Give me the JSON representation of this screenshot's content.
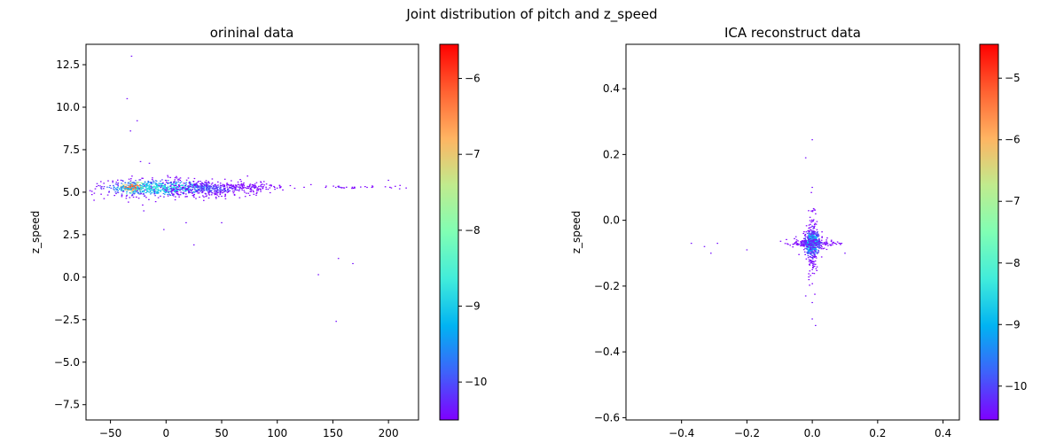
{
  "figure": {
    "suptitle": "Joint distribution of pitch and z_speed"
  },
  "chart_data": [
    {
      "type": "heatmap",
      "title": "orininal data",
      "xlabel": "",
      "ylabel": "z_speed",
      "xlim": [
        -72,
        227
      ],
      "ylim": [
        -8.4,
        13.7
      ],
      "xticks": [
        -50,
        0,
        50,
        100,
        150,
        200
      ],
      "yticks": [
        -7.5,
        -5.0,
        -2.5,
        0.0,
        2.5,
        5.0,
        7.5,
        10.0,
        12.5
      ],
      "colormap": "rainbow",
      "colorbar": {
        "range": [
          -10.5,
          -5.55
        ],
        "ticks": [
          -10,
          -9,
          -8,
          -7,
          -6
        ]
      },
      "clusters": [
        {
          "cx": -30,
          "cy": 5.3,
          "sx": 6,
          "sy": 0.15,
          "n": 140,
          "level": -6.0
        },
        {
          "cx": -5,
          "cy": 5.25,
          "sx": 28,
          "sy": 0.25,
          "n": 600,
          "level": -8.8
        },
        {
          "cx": 40,
          "cy": 5.2,
          "sx": 25,
          "sy": 0.22,
          "n": 400,
          "level": -10.0
        },
        {
          "cx": 80,
          "cy": 5.3,
          "sx": 15,
          "sy": 0.08,
          "n": 60,
          "level": -10.3
        },
        {
          "cx": 160,
          "cy": 5.3,
          "sx": 20,
          "sy": 0.05,
          "n": 35,
          "level": -10.4
        }
      ],
      "outliers": [
        [
          -31,
          13.0
        ],
        [
          -35,
          10.5
        ],
        [
          -32,
          8.6
        ],
        [
          -26,
          9.2
        ],
        [
          -23,
          6.8
        ],
        [
          -15,
          6.7
        ],
        [
          -20,
          3.9
        ],
        [
          -2,
          2.8
        ],
        [
          18,
          3.2
        ],
        [
          25,
          1.9
        ],
        [
          50,
          3.2
        ],
        [
          137,
          0.15
        ],
        [
          155,
          1.1
        ],
        [
          168,
          0.8
        ],
        [
          153,
          -2.6
        ],
        [
          200,
          5.7
        ],
        [
          -62,
          5.5
        ],
        [
          210,
          5.2
        ]
      ]
    },
    {
      "type": "heatmap",
      "title": "ICA reconstruct data",
      "xlabel": "",
      "ylabel": "z_speed",
      "xlim": [
        -0.57,
        0.45
      ],
      "ylim": [
        -0.607,
        0.535
      ],
      "xticks": [
        -0.4,
        -0.2,
        0.0,
        0.2,
        0.4
      ],
      "yticks": [
        -0.6,
        -0.4,
        -0.2,
        0.0,
        0.2,
        0.4
      ],
      "colormap": "rainbow",
      "colorbar": {
        "range": [
          -10.55,
          -4.45
        ],
        "ticks": [
          -10,
          -9,
          -8,
          -7,
          -6,
          -5
        ]
      },
      "clusters": [
        {
          "cx": 0.0,
          "cy": -0.07,
          "sx": 0.005,
          "sy": 0.008,
          "n": 200,
          "level": -5.5
        },
        {
          "cx": 0.0,
          "cy": -0.07,
          "sx": 0.012,
          "sy": 0.02,
          "n": 450,
          "level": -8.5
        },
        {
          "cx": 0.0,
          "cy": -0.07,
          "sx": 0.04,
          "sy": 0.006,
          "n": 150,
          "level": -10.0
        },
        {
          "cx": 0.0,
          "cy": -0.07,
          "sx": 0.006,
          "sy": 0.06,
          "n": 150,
          "level": -10.0
        }
      ],
      "outliers": [
        [
          0.0,
          0.245
        ],
        [
          -0.02,
          0.19
        ],
        [
          0.0,
          0.1
        ],
        [
          -0.05,
          -0.05
        ],
        [
          -0.02,
          -0.23
        ],
        [
          0.0,
          -0.25
        ],
        [
          0.0,
          -0.3
        ],
        [
          0.01,
          -0.32
        ],
        [
          -0.31,
          -0.1
        ],
        [
          -0.33,
          -0.08
        ],
        [
          -0.29,
          -0.07
        ],
        [
          -0.2,
          -0.09
        ],
        [
          -0.37,
          -0.07
        ],
        [
          0.09,
          -0.07
        ],
        [
          0.1,
          -0.1
        ]
      ]
    }
  ]
}
